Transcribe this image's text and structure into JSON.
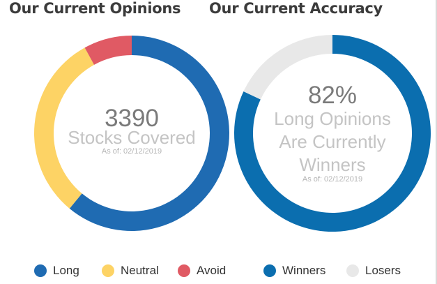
{
  "colors": {
    "long": "#1f6bb2",
    "neutral": "#fdd365",
    "avoid": "#e05a64",
    "winners": "#0b6eaf",
    "losers": "#e8e8e8",
    "big_number": "#7a7a7a",
    "center_label": "#c4c4c4",
    "as_of": "#b5b5b5"
  },
  "left": {
    "title": "Our Current Opinions",
    "center_value": "3390",
    "center_label": "Stocks Covered",
    "as_of": "As of: 02/12/2019"
  },
  "right": {
    "title": "Our Current Accuracy",
    "center_value": "82%",
    "center_label_lines": [
      "Long Opinions",
      "Are Currently",
      "Winners"
    ],
    "as_of": "As of: 02/12/2019"
  },
  "legend": [
    {
      "label": "Long",
      "color": "#1f6bb2"
    },
    {
      "label": "Neutral",
      "color": "#fdd365"
    },
    {
      "label": "Avoid",
      "color": "#e05a64"
    },
    {
      "label": "Winners",
      "color": "#0b6eaf"
    },
    {
      "label": "Losers",
      "color": "#e8e8e8"
    }
  ],
  "chart_data": [
    {
      "type": "pie",
      "title": "Our Current Opinions",
      "categories": [
        "Long",
        "Neutral",
        "Avoid"
      ],
      "values": [
        61,
        31,
        8
      ],
      "unit": "percent (estimated)",
      "center_total": 3390
    },
    {
      "type": "pie",
      "title": "Our Current Accuracy",
      "categories": [
        "Winners",
        "Losers"
      ],
      "values": [
        82,
        18
      ],
      "unit": "percent"
    }
  ]
}
